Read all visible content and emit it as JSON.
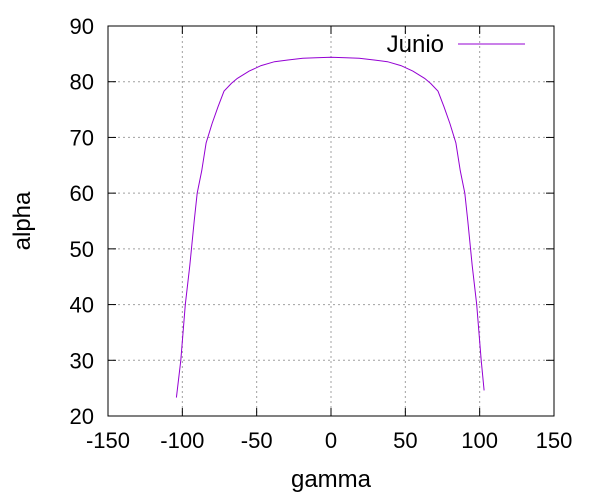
{
  "chart_data": {
    "type": "line",
    "title": "",
    "xlabel": "gamma",
    "ylabel": "alpha",
    "xlim": [
      -150,
      150
    ],
    "ylim": [
      20,
      90
    ],
    "xticks": [
      -150,
      -100,
      -50,
      0,
      50,
      100,
      150
    ],
    "yticks": [
      20,
      30,
      40,
      50,
      60,
      70,
      80,
      90
    ],
    "grid": true,
    "legend_position": "top-right",
    "series": [
      {
        "name": "Junio",
        "color": "#9400d3",
        "x": [
          -104,
          -101,
          -98,
          -95,
          -92,
          -90,
          -87,
          -84,
          -80,
          -76,
          -72,
          -67,
          -63,
          -55,
          -47,
          -38,
          -29,
          -19,
          -10,
          0,
          10,
          19,
          29,
          38,
          47,
          55,
          63,
          67,
          72,
          76,
          80,
          84,
          87,
          90,
          92,
          95,
          98,
          101,
          103
        ],
        "y": [
          23.3,
          30,
          40,
          47,
          55,
          60,
          64,
          69,
          72.5,
          75.5,
          78.3,
          79.7,
          80.6,
          81.9,
          82.9,
          83.6,
          83.9,
          84.2,
          84.3,
          84.4,
          84.3,
          84.2,
          83.9,
          83.6,
          82.9,
          81.9,
          80.6,
          79.7,
          78.3,
          75.5,
          72.5,
          69,
          64,
          60,
          55,
          47,
          40,
          30,
          24.6
        ]
      }
    ]
  }
}
